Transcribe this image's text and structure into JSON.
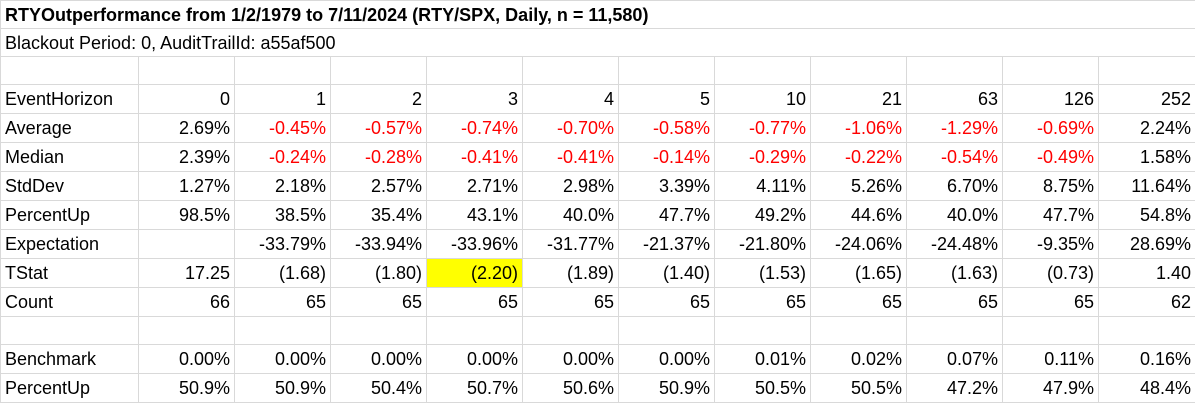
{
  "title": "RTYOutperformance from 1/2/1979 to 7/11/2024 (RTY/SPX, Daily, n = 11,580)",
  "subtitle": "Blackout Period: 0, AuditTrailId: a55af500",
  "colors": {
    "negative": "#ff0000",
    "highlight": "#ffff00",
    "gridline": "#d9d9d9"
  },
  "header": {
    "label": "EventHorizon",
    "values": [
      "0",
      "1",
      "2",
      "3",
      "4",
      "5",
      "10",
      "21",
      "63",
      "126",
      "252"
    ]
  },
  "rows": [
    {
      "label": "Average",
      "values": [
        "2.69%",
        "-0.45%",
        "-0.57%",
        "-0.74%",
        "-0.70%",
        "-0.58%",
        "-0.77%",
        "-1.06%",
        "-1.29%",
        "-0.69%",
        "2.24%"
      ]
    },
    {
      "label": "Median",
      "values": [
        "2.39%",
        "-0.24%",
        "-0.28%",
        "-0.41%",
        "-0.41%",
        "-0.14%",
        "-0.29%",
        "-0.22%",
        "-0.54%",
        "-0.49%",
        "1.58%"
      ]
    },
    {
      "label": "StdDev",
      "values": [
        "1.27%",
        "2.18%",
        "2.57%",
        "2.71%",
        "2.98%",
        "3.39%",
        "4.11%",
        "5.26%",
        "6.70%",
        "8.75%",
        "11.64%"
      ]
    },
    {
      "label": "PercentUp",
      "values": [
        "98.5%",
        "38.5%",
        "35.4%",
        "43.1%",
        "40.0%",
        "47.7%",
        "49.2%",
        "44.6%",
        "40.0%",
        "47.7%",
        "54.8%"
      ]
    },
    {
      "label": "Expectation",
      "values": [
        "",
        "-33.79%",
        "-33.94%",
        "-33.96%",
        "-31.77%",
        "-21.37%",
        "-21.80%",
        "-24.06%",
        "-24.48%",
        "-9.35%",
        "28.69%"
      ]
    },
    {
      "label": "TStat",
      "values": [
        "17.25",
        "(1.68)",
        "(1.80)",
        "(2.20)",
        "(1.89)",
        "(1.40)",
        "(1.53)",
        "(1.65)",
        "(1.63)",
        "(0.73)",
        "1.40"
      ]
    },
    {
      "label": "Count",
      "values": [
        "66",
        "65",
        "65",
        "65",
        "65",
        "65",
        "65",
        "65",
        "65",
        "65",
        "62"
      ]
    }
  ],
  "benchmark_rows": [
    {
      "label": "Benchmark",
      "values": [
        "0.00%",
        "0.00%",
        "0.00%",
        "0.00%",
        "0.00%",
        "0.00%",
        "0.01%",
        "0.02%",
        "0.07%",
        "0.11%",
        "0.16%"
      ]
    },
    {
      "label": "PercentUp",
      "values": [
        "50.9%",
        "50.9%",
        "50.4%",
        "50.7%",
        "50.6%",
        "50.9%",
        "50.5%",
        "50.5%",
        "47.2%",
        "47.9%",
        "48.4%"
      ]
    }
  ],
  "highlighted_cell": {
    "row": "TStat",
    "column": "3",
    "value": "(2.20)"
  }
}
